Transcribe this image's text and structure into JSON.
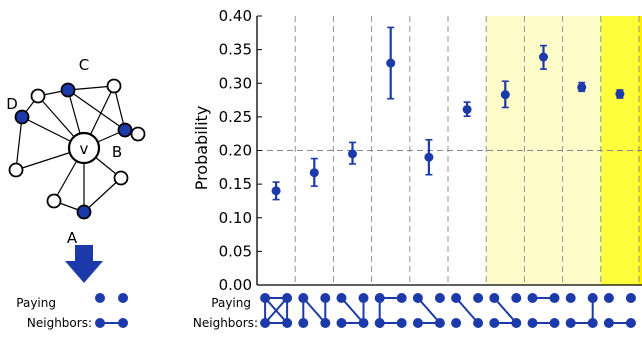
{
  "left_panel": {
    "center_label": "v",
    "labels": [
      "A",
      "B",
      "C",
      "D"
    ],
    "legend_line1": "Paying",
    "legend_line2": "Neighbors:"
  },
  "chart_data": {
    "type": "scatter",
    "ylabel": "Probability",
    "xlabel_line1": "Paying",
    "xlabel_line2": "Neighbors:",
    "ylim": [
      0.0,
      0.4
    ],
    "yticks": [
      "0.00",
      "0.05",
      "0.10",
      "0.15",
      "0.20",
      "0.25",
      "0.30",
      "0.35",
      "0.40"
    ],
    "grid": "vertical dashed, horizontal dashed at 0.20",
    "series": [
      {
        "values": [
          0.14,
          0.167,
          0.195,
          0.33,
          0.19,
          0.261,
          0.283,
          0.339,
          0.294,
          0.284
        ],
        "errors_low": [
          0.127,
          0.147,
          0.18,
          0.277,
          0.164,
          0.251,
          0.264,
          0.321,
          0.288,
          0.278
        ],
        "errors_high": [
          0.153,
          0.188,
          0.212,
          0.383,
          0.216,
          0.272,
          0.303,
          0.356,
          0.301,
          0.29
        ]
      }
    ],
    "background_bands": [
      {
        "from": 0,
        "to": 6,
        "color": "#ffffff"
      },
      {
        "from": 6,
        "to": 9,
        "color": "#fefcc8"
      },
      {
        "from": 9,
        "to": 10,
        "color": "#fefe3c"
      },
      {
        "from": 10,
        "to": 11,
        "color": "#fff200"
      }
    ],
    "marker_color": "#1c3aa9"
  }
}
